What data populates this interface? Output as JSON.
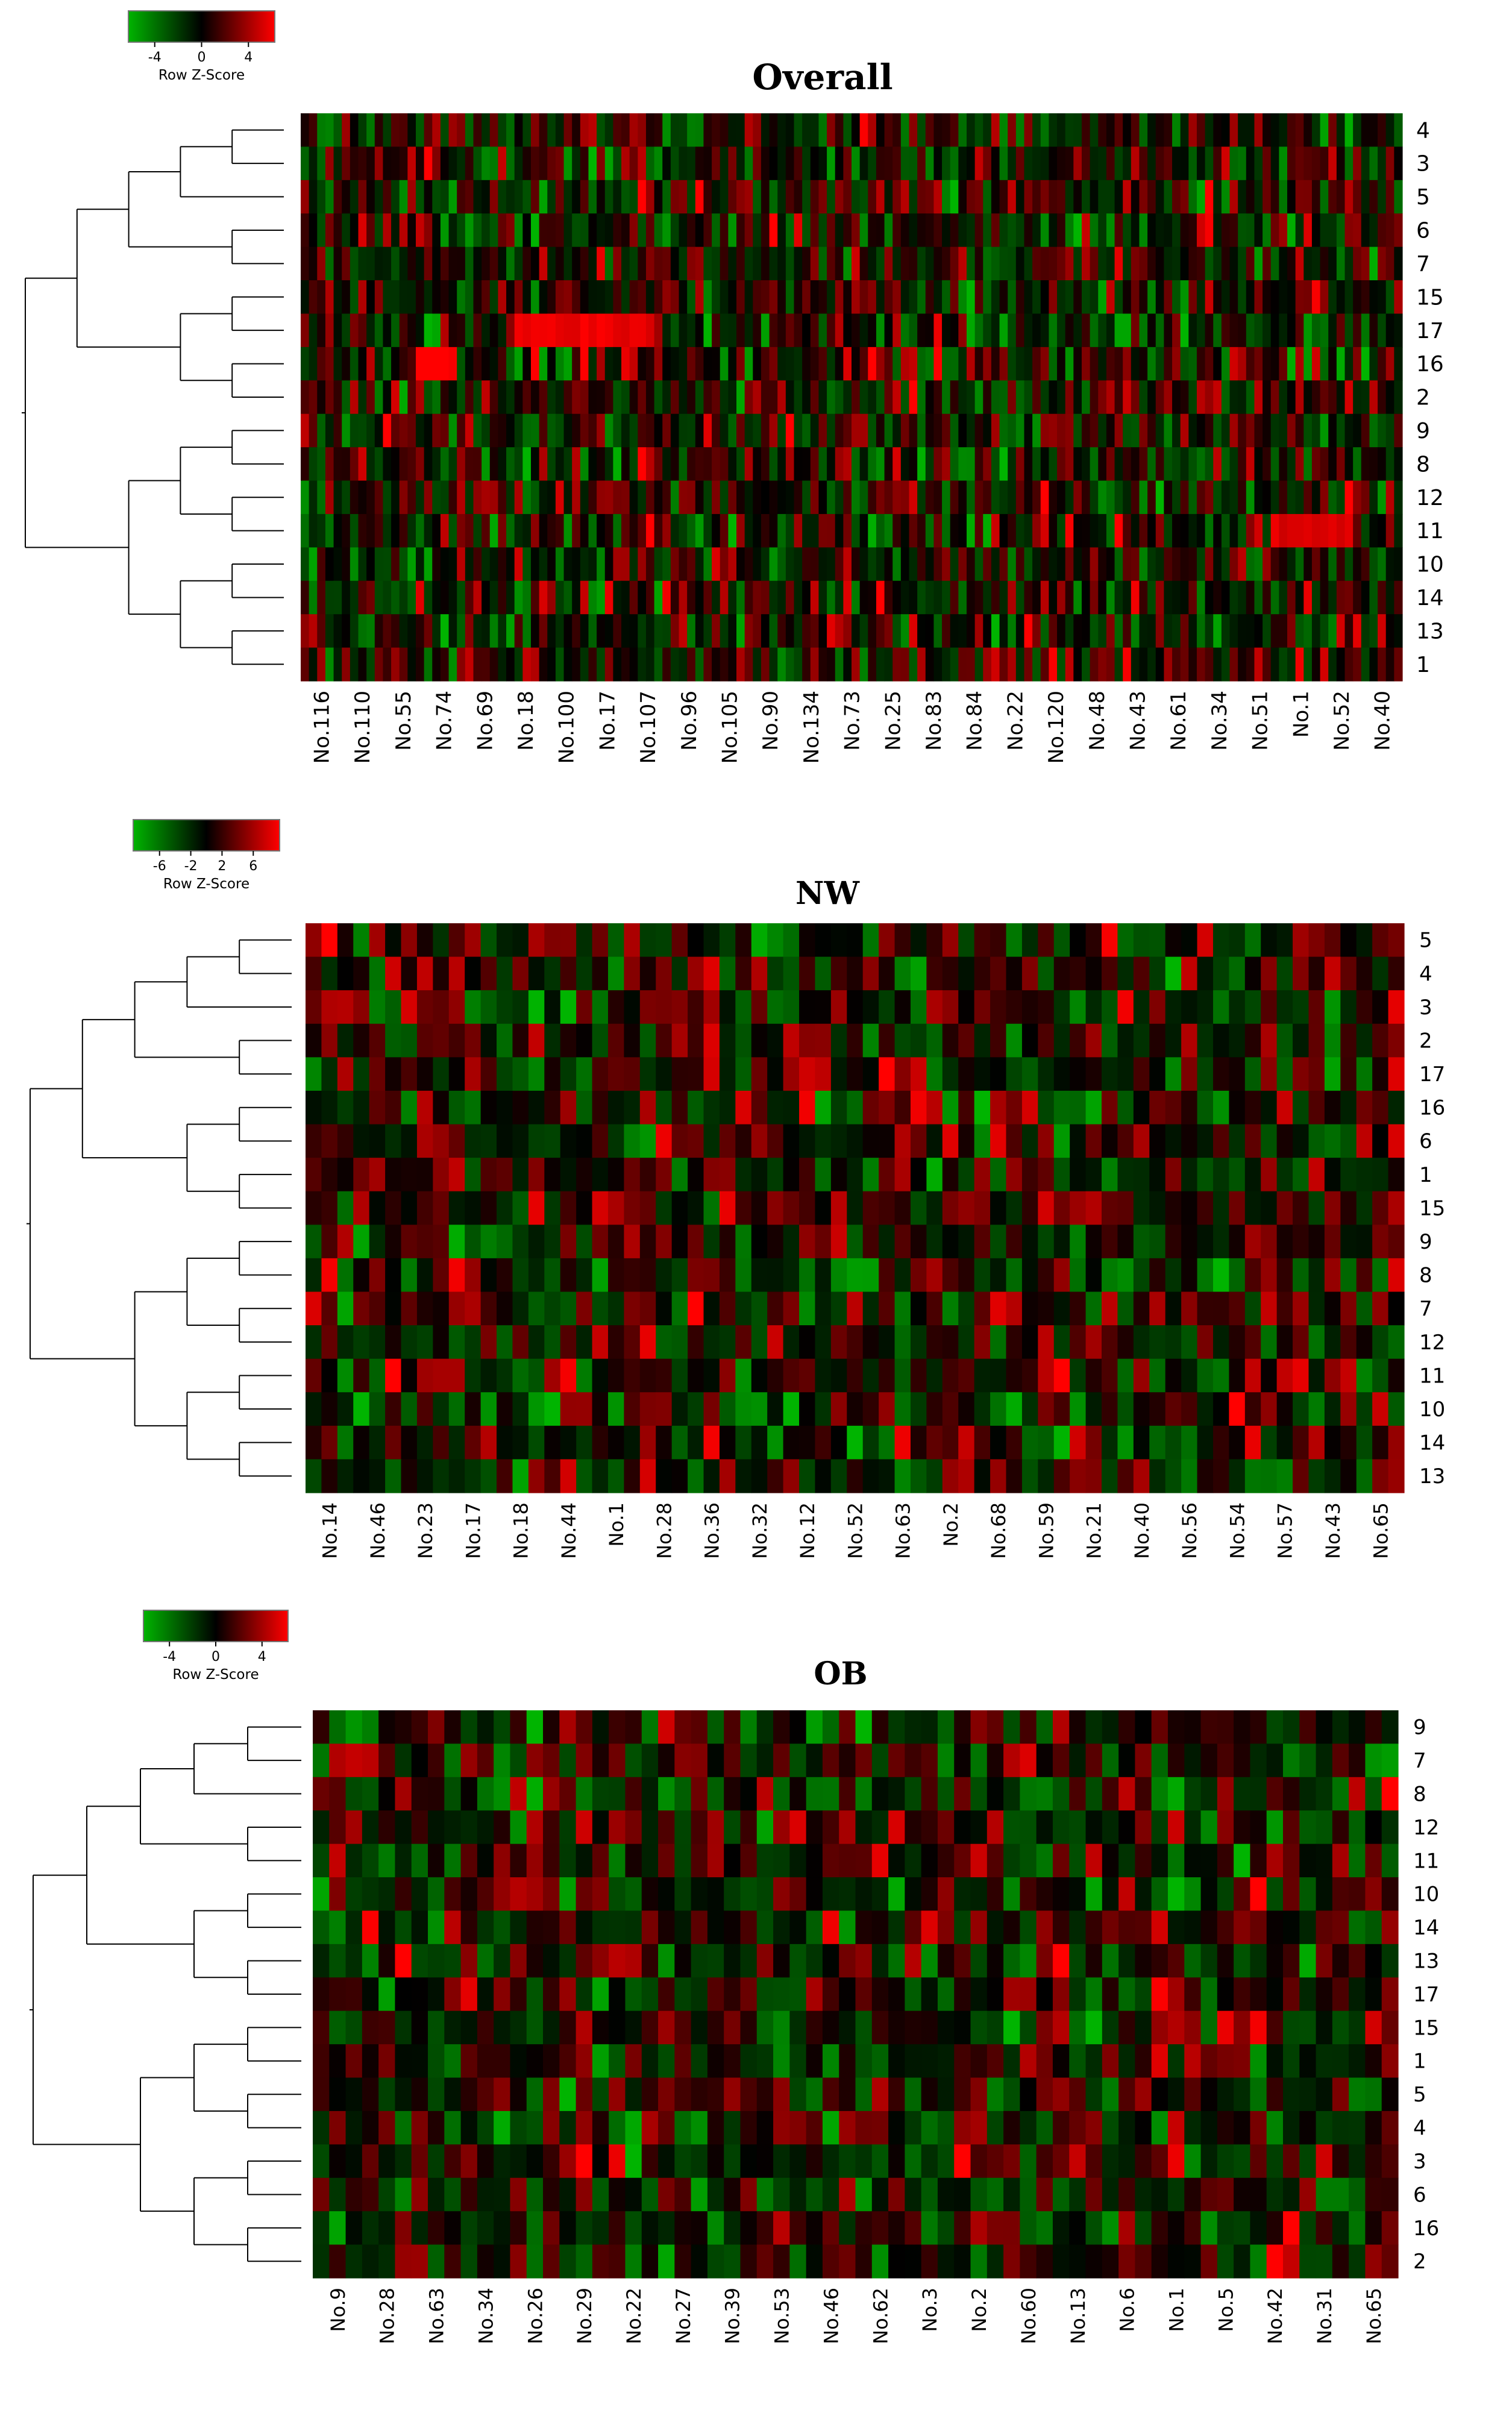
{
  "chart_data": [
    {
      "type": "heatmap",
      "title": "Overall",
      "color_key": {
        "label": "Row Z-Score",
        "ticks": [
          "-4",
          "0",
          "4"
        ],
        "low_color": "#00b400",
        "mid_color": "#000000",
        "high_color": "#ff0000"
      },
      "row_labels": [
        "4",
        "3",
        "5",
        "6",
        "7",
        "15",
        "17",
        "16",
        "2",
        "9",
        "8",
        "12",
        "11",
        "10",
        "14",
        "13",
        "1"
      ],
      "column_labels": [
        "No.116",
        "No.110",
        "No.55",
        "No.74",
        "No.69",
        "No.18",
        "No.100",
        "No.17",
        "No.107",
        "No.96",
        "No.105",
        "No.90",
        "No.134",
        "No.73",
        "No.25",
        "No.83",
        "No.84",
        "No.22",
        "No.120",
        "No.48",
        "No.43",
        "No.61",
        "No.34",
        "No.51",
        "No.1",
        "No.52",
        "No.40"
      ],
      "column_count": 134
    },
    {
      "type": "heatmap",
      "title": "NW",
      "color_key": {
        "label": "Row Z-Score",
        "ticks": [
          "-6",
          "-2",
          "2",
          "6"
        ],
        "low_color": "#00b400",
        "mid_color": "#000000",
        "high_color": "#ff0000"
      },
      "row_labels": [
        "5",
        "4",
        "3",
        "2",
        "17",
        "16",
        "6",
        "1",
        "15",
        "9",
        "8",
        "7",
        "12",
        "11",
        "10",
        "14",
        "13"
      ],
      "column_labels": [
        "No.14",
        "No.46",
        "No.23",
        "No.17",
        "No.18",
        "No.44",
        "No.1",
        "No.28",
        "No.36",
        "No.32",
        "No.12",
        "No.52",
        "No.63",
        "No.2",
        "No.68",
        "No.59",
        "No.21",
        "No.40",
        "No.56",
        "No.54",
        "No.57",
        "No.43",
        "No.65"
      ],
      "column_count": 69
    },
    {
      "type": "heatmap",
      "title": "OB",
      "color_key": {
        "label": "Row Z-Score",
        "ticks": [
          "-4",
          "0",
          "4"
        ],
        "low_color": "#00b400",
        "mid_color": "#000000",
        "high_color": "#ff0000"
      },
      "row_labels": [
        "9",
        "7",
        "8",
        "12",
        "11",
        "10",
        "14",
        "13",
        "17",
        "15",
        "1",
        "5",
        "4",
        "3",
        "6",
        "16",
        "2"
      ],
      "column_labels": [
        "No.9",
        "No.28",
        "No.63",
        "No.34",
        "No.26",
        "No.29",
        "No.22",
        "No.27",
        "No.39",
        "No.53",
        "No.46",
        "No.62",
        "No.3",
        "No.2",
        "No.60",
        "No.13",
        "No.6",
        "No.1",
        "No.5",
        "No.42",
        "No.31",
        "No.65"
      ],
      "column_count": 66
    }
  ]
}
